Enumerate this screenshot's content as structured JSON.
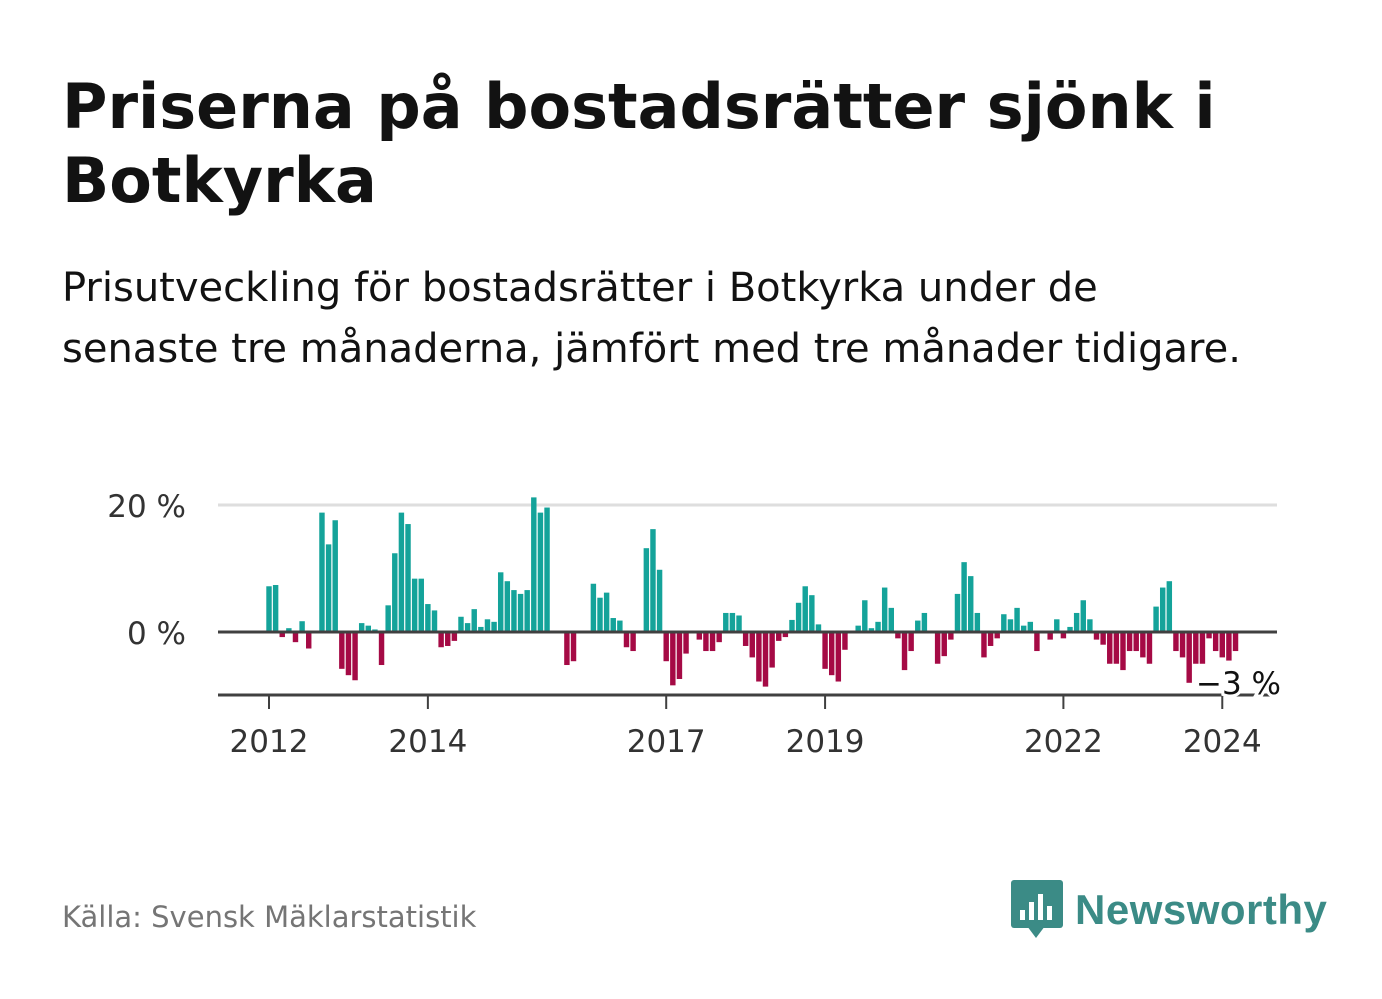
{
  "header": {
    "title": "Priserna på bostadsrätter sjönk i Botkyrka",
    "subtitle": "Prisutveckling för bostadsrätter i Botkyrka under de senaste tre månaderna, jämfört med tre månader tidigare."
  },
  "footer": {
    "source": "Källa: Svensk Mäklarstatistik",
    "brand": "Newsworthy"
  },
  "colors": {
    "positive": "#14a39a",
    "negative": "#a50a45",
    "axis": "#404040",
    "grid": "#dedede",
    "brand": "#3b8b86"
  },
  "icons": {
    "logo": "bar-chart-speech-bubble-icon"
  },
  "chart_data": {
    "type": "bar",
    "title": "Priserna på bostadsrätter sjönk i Botkyrka",
    "xlabel": "",
    "ylabel": "",
    "ylim": [
      -10,
      20
    ],
    "yticks": [
      {
        "value": 0,
        "label": "0 %"
      },
      {
        "value": 20,
        "label": "20 %"
      }
    ],
    "xticks": [
      {
        "month_index": 0,
        "label": "2012"
      },
      {
        "month_index": 24,
        "label": "2014"
      },
      {
        "month_index": 60,
        "label": "2017"
      },
      {
        "month_index": 84,
        "label": "2019"
      },
      {
        "month_index": 120,
        "label": "2022"
      },
      {
        "month_index": 144,
        "label": "2024"
      }
    ],
    "start": "2012-01",
    "last_value_label": "−3 %",
    "values": [
      7.2,
      7.4,
      -0.8,
      0.6,
      -1.6,
      1.7,
      -2.6,
      0,
      18.8,
      13.8,
      17.6,
      -5.8,
      -6.8,
      -7.6,
      1.4,
      1.0,
      0.4,
      -5.2,
      4.2,
      12.4,
      18.8,
      17.0,
      8.4,
      8.4,
      4.4,
      3.4,
      -2.4,
      -2.2,
      -1.4,
      2.4,
      1.4,
      3.6,
      0.8,
      2.0,
      1.6,
      9.4,
      8.0,
      6.6,
      6.0,
      6.6,
      21.2,
      18.8,
      19.6,
      0,
      0,
      -5.2,
      -4.6,
      0,
      0,
      7.6,
      5.4,
      6.2,
      2.2,
      1.8,
      -2.4,
      -3.0,
      0,
      13.2,
      16.2,
      9.8,
      -4.6,
      -8.4,
      -7.4,
      -3.4,
      0,
      -1.2,
      -3.0,
      -3.0,
      -1.6,
      3.0,
      3.0,
      2.6,
      -2.2,
      -4.0,
      -7.8,
      -8.6,
      -5.6,
      -1.4,
      -0.8,
      1.9,
      4.6,
      7.2,
      5.8,
      1.2,
      -5.8,
      -6.8,
      -7.8,
      -2.8,
      0,
      1.0,
      5.0,
      0.6,
      1.6,
      7.0,
      3.8,
      -1.0,
      -6.0,
      -3.0,
      1.8,
      3.0,
      0,
      -5.0,
      -3.8,
      -1.2,
      6.0,
      11.0,
      8.8,
      3.0,
      -4.0,
      -2.2,
      -1.0,
      2.8,
      2.0,
      3.8,
      1.0,
      1.6,
      -3.0,
      0,
      -1.2,
      2.0,
      -1.0,
      0.8,
      3.0,
      5.0,
      2.0,
      -1.2,
      -2.0,
      -5.0,
      -5.0,
      -6.0,
      -3.0,
      -3.0,
      -4.0,
      -5.0,
      4.0,
      7.0,
      8.0,
      -3.0,
      -4.0,
      -8.0,
      -5.0,
      -5.0,
      -1.0,
      -3.0,
      -4.0,
      -4.5,
      -3.0
    ]
  }
}
